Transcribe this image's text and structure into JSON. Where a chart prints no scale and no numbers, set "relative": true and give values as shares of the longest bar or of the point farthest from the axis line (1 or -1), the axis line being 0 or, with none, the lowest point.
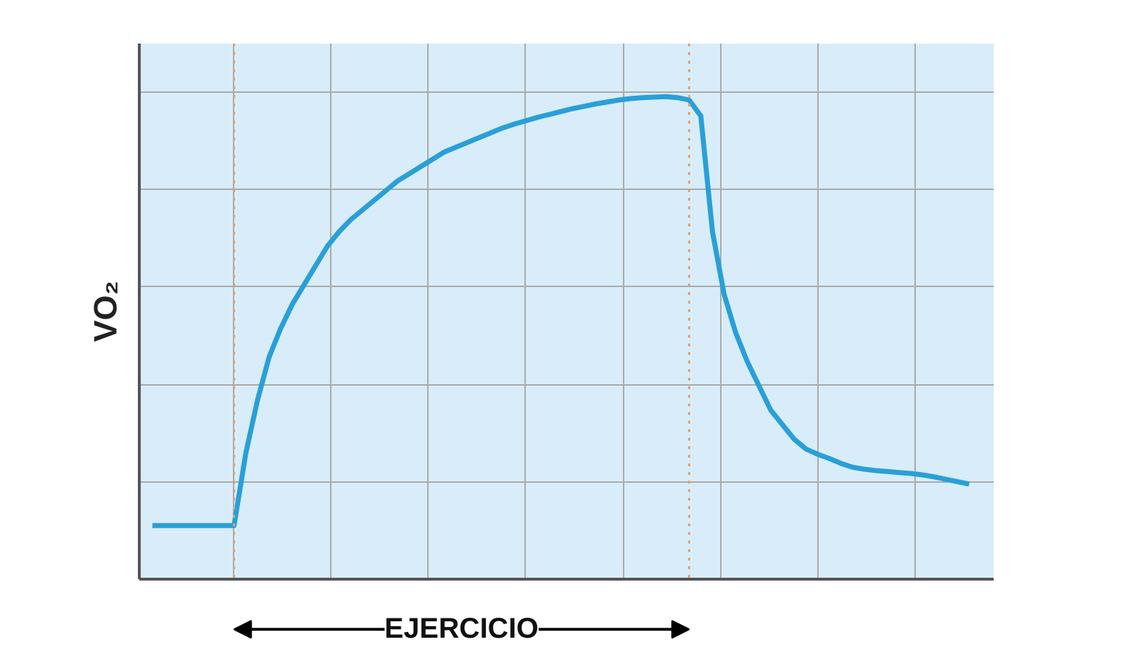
{
  "chart_data": {
    "type": "line",
    "ylabel": "VO₂",
    "relative": true,
    "grid": true,
    "marker": "none",
    "line_style": "solid",
    "categories": [
      null,
      null,
      null,
      null,
      null,
      null,
      null,
      null,
      null,
      null,
      null,
      null,
      null,
      null,
      null,
      null,
      null,
      null,
      null,
      null,
      null,
      null,
      null,
      null,
      null,
      null,
      null,
      null,
      null,
      null,
      null,
      null,
      null,
      null,
      null,
      null,
      null,
      null,
      null,
      null,
      null,
      null,
      null,
      null,
      null,
      null,
      null,
      null,
      null,
      null,
      null,
      null,
      null,
      null,
      null,
      null,
      null,
      null,
      null,
      null,
      null,
      null,
      null,
      null,
      null,
      null,
      null,
      null,
      null,
      null,
      null
    ],
    "series": [
      {
        "color": "#2a9fd8",
        "values": [
          0.111,
          0.111,
          0.111,
          0.111,
          0.111,
          0.111,
          0.111,
          0.111,
          0.26,
          0.37,
          0.46,
          0.52,
          0.57,
          0.61,
          0.65,
          0.69,
          0.72,
          0.745,
          0.765,
          0.785,
          0.805,
          0.825,
          0.84,
          0.855,
          0.87,
          0.885,
          0.895,
          0.905,
          0.915,
          0.925,
          0.935,
          0.943,
          0.95,
          0.957,
          0.963,
          0.969,
          0.975,
          0.98,
          0.985,
          0.989,
          0.993,
          0.996,
          0.998,
          0.999,
          1.0,
          0.998,
          0.993,
          0.96,
          0.72,
          0.59,
          0.51,
          0.45,
          0.4,
          0.35,
          0.32,
          0.29,
          0.27,
          0.259,
          0.25,
          0.24,
          0.232,
          0.228,
          0.225,
          0.223,
          0.221,
          0.219,
          0.216,
          0.212,
          0.207,
          0.202,
          0.197
        ]
      }
    ],
    "annotations": [
      "EJERCICIO"
    ]
  }
}
